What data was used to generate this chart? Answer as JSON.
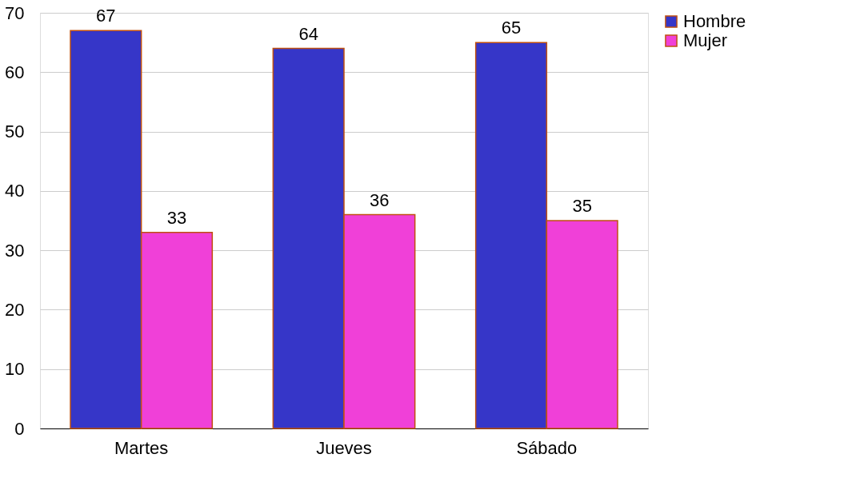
{
  "chart_data": {
    "type": "bar",
    "categories": [
      "Martes",
      "Jueves",
      "Sábado"
    ],
    "series": [
      {
        "name": "Hombre",
        "color": "#3636c8",
        "values": [
          67,
          64,
          65
        ]
      },
      {
        "name": "Mujer",
        "color": "#f040d8",
        "values": [
          33,
          36,
          35
        ]
      }
    ],
    "ylim": [
      0,
      70
    ],
    "yticks": [
      0,
      10,
      20,
      30,
      40,
      50,
      60,
      70
    ],
    "grid": "y",
    "legend": "right",
    "data_labels": true
  }
}
